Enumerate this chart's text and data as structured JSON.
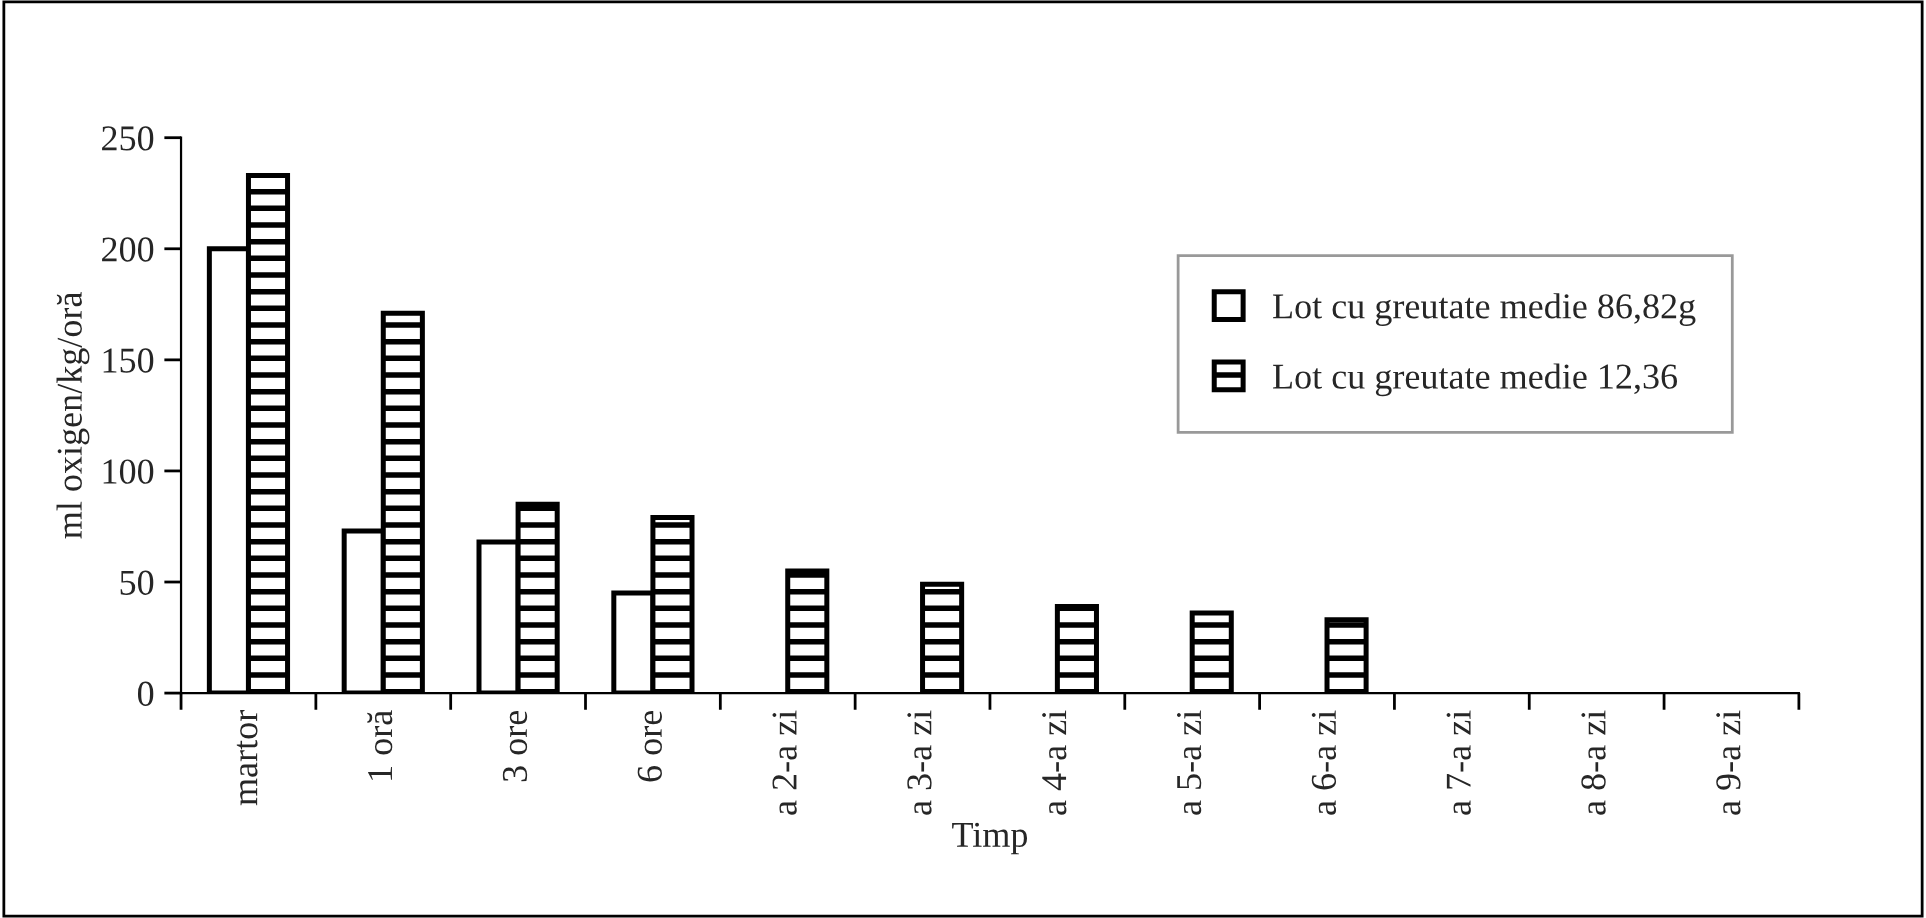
{
  "chart_data": {
    "type": "bar",
    "xlabel": "Timp",
    "ylabel": "ml oxigen/kg/oră",
    "categories": [
      "martor",
      "1 oră",
      "3 ore",
      "6 ore",
      "a 2-a zi",
      "a 3-a zi",
      "a 4-a zi",
      "a 5-a zi",
      "a 6-a zi",
      "a 7-a zi",
      "a 8-a zi",
      "a 9-a zi"
    ],
    "series": [
      {
        "name": "Lot cu greutate medie 86,82g",
        "color": "#ffffff",
        "values": [
          200,
          73,
          68,
          45,
          null,
          null,
          null,
          null,
          null,
          null,
          null,
          null
        ]
      },
      {
        "name": "Lot cu greutate medie 12,36",
        "color": "#000000",
        "values": [
          233,
          171,
          85,
          79,
          55,
          49,
          39,
          36,
          33,
          null,
          null,
          null
        ]
      }
    ],
    "ylim": [
      0,
      250
    ],
    "yticks": [
      0,
      50,
      100,
      150,
      200,
      250
    ],
    "grid": false,
    "legend": "right"
  }
}
